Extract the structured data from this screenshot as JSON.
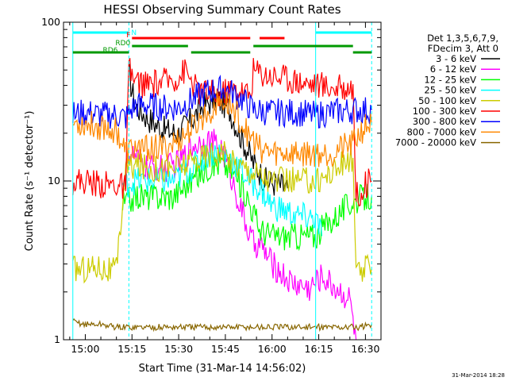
{
  "chart_data": {
    "type": "line",
    "title": "HESSI Observing Summary Count Rates",
    "xlabel": "Start Time (31-Mar-14 14:56:02)",
    "ylabel": "Count Rate (s⁻¹ detector⁻¹)",
    "x_unit": "minutes of 31-Mar-2014 (UT)",
    "xlim": [
      "14:53",
      "16:35"
    ],
    "ylim": [
      1,
      100
    ],
    "y_scale": "log",
    "x_ticks": [
      "15:00",
      "15:15",
      "15:30",
      "15:45",
      "16:00",
      "16:15",
      "16:30"
    ],
    "y_ticks": [
      "1",
      "10",
      "100"
    ],
    "timestamp": "31-Mar-2014 18:28",
    "legend": {
      "placement": "right",
      "header": [
        "Det 1,3,5,6,7,9,",
        "FDecim 3, Att 0"
      ]
    },
    "vertical_markers": [
      {
        "time": "14:56",
        "style": "solid",
        "color": "#00ffff"
      },
      {
        "time": "15:14",
        "style": "dashed",
        "color": "#00ffff"
      },
      {
        "time": "16:14",
        "style": "solid",
        "color": "#00ffff"
      },
      {
        "time": "16:32",
        "style": "dashed",
        "color": "#00ffff"
      }
    ],
    "flag_bars": [
      {
        "label": "N",
        "color": "#00ffff",
        "row": 1,
        "segments": [
          [
            "14:56",
            "15:14"
          ],
          [
            "16:14",
            "16:32"
          ]
        ]
      },
      {
        "label": "F",
        "color": "#ff0000",
        "row": 2,
        "segments": [
          [
            "15:15",
            "15:53"
          ],
          [
            "15:56",
            "16:04"
          ]
        ]
      },
      {
        "label": "RD0",
        "color": "#009900",
        "row": 3,
        "segments": [
          [
            "15:15",
            "15:33"
          ],
          [
            "15:54",
            "16:26"
          ]
        ]
      },
      {
        "label": "RD6",
        "color": "#009900",
        "row": 4,
        "segments": [
          [
            "14:56",
            "15:14"
          ],
          [
            "15:34",
            "15:53"
          ],
          [
            "16:26",
            "16:32"
          ]
        ]
      }
    ],
    "series": [
      {
        "name": "3 - 6 keV",
        "color": "#000000",
        "points": [
          [
            "15:14",
            47
          ],
          [
            "15:16",
            30
          ],
          [
            "15:20",
            25
          ],
          [
            "15:25",
            21
          ],
          [
            "15:30",
            20
          ],
          [
            "15:34",
            24
          ],
          [
            "15:38",
            30
          ],
          [
            "15:42",
            33
          ],
          [
            "15:46",
            29
          ],
          [
            "15:50",
            19
          ],
          [
            "15:54",
            13
          ],
          [
            "15:58",
            10
          ],
          [
            "16:02",
            9.5
          ],
          [
            "16:05",
            9
          ]
        ]
      },
      {
        "name": "6 - 12 keV",
        "color": "#ff00ff",
        "points": [
          [
            "15:14",
            15
          ],
          [
            "15:20",
            12
          ],
          [
            "15:26",
            12
          ],
          [
            "15:30",
            13
          ],
          [
            "15:35",
            17
          ],
          [
            "15:40",
            18
          ],
          [
            "15:44",
            16
          ],
          [
            "15:48",
            9
          ],
          [
            "15:52",
            5
          ],
          [
            "15:54",
            4
          ],
          [
            "15:56",
            4
          ],
          [
            "16:00",
            3
          ],
          [
            "16:06",
            2.3
          ],
          [
            "16:12",
            2.1
          ],
          [
            "16:16",
            2.5
          ],
          [
            "16:25",
            1.8
          ],
          [
            "16:27",
            1
          ]
        ]
      },
      {
        "name": "12 - 25 keV",
        "color": "#00ff00",
        "points": [
          [
            "15:12",
            7
          ],
          [
            "15:16",
            8
          ],
          [
            "15:22",
            8
          ],
          [
            "15:28",
            8
          ],
          [
            "15:34",
            10
          ],
          [
            "15:40",
            12.5
          ],
          [
            "15:44",
            13
          ],
          [
            "15:48",
            11
          ],
          [
            "15:52",
            8
          ],
          [
            "15:56",
            5
          ],
          [
            "16:00",
            4.5
          ],
          [
            "16:08",
            4.5
          ],
          [
            "16:14",
            4.5
          ],
          [
            "16:16",
            5
          ],
          [
            "16:26",
            7.5
          ],
          [
            "16:32",
            8
          ]
        ]
      },
      {
        "name": "25 - 50 keV",
        "color": "#00ffff",
        "points": [
          [
            "15:12",
            9.5
          ],
          [
            "15:16",
            10
          ],
          [
            "15:22",
            10
          ],
          [
            "15:28",
            10
          ],
          [
            "15:34",
            12
          ],
          [
            "15:40",
            15
          ],
          [
            "15:44",
            15
          ],
          [
            "15:48",
            13
          ],
          [
            "15:52",
            10.5
          ],
          [
            "15:56",
            9
          ],
          [
            "16:00",
            7
          ],
          [
            "16:08",
            6
          ],
          [
            "16:14",
            5.8
          ],
          [
            "16:16",
            4.5
          ]
        ]
      },
      {
        "name": "50 - 100 keV",
        "color": "#cccc00",
        "points": [
          [
            "14:56",
            2.8
          ],
          [
            "15:00",
            2.8
          ],
          [
            "15:04",
            2.9
          ],
          [
            "15:06",
            2.8
          ],
          [
            "15:08",
            2.7
          ],
          [
            "15:10",
            2.7
          ],
          [
            "15:13",
            12
          ],
          [
            "15:16",
            12.5
          ],
          [
            "15:22",
            12
          ],
          [
            "15:28",
            12
          ],
          [
            "15:34",
            13
          ],
          [
            "15:40",
            15
          ],
          [
            "15:44",
            15
          ],
          [
            "15:48",
            13
          ],
          [
            "15:52",
            12
          ],
          [
            "15:56",
            11
          ],
          [
            "16:00",
            10
          ],
          [
            "16:08",
            10
          ],
          [
            "16:14",
            10
          ],
          [
            "16:18",
            11
          ],
          [
            "16:26",
            14
          ],
          [
            "16:27",
            2.5
          ],
          [
            "16:30",
            2.8
          ],
          [
            "16:32",
            2.8
          ]
        ]
      },
      {
        "name": "100 - 300 keV",
        "color": "#ff0000",
        "points": [
          [
            "14:56",
            10
          ],
          [
            "15:00",
            10
          ],
          [
            "15:06",
            9.5
          ],
          [
            "15:10",
            9.5
          ],
          [
            "15:13",
            9
          ],
          [
            "15:14",
            50
          ],
          [
            "15:16",
            42
          ],
          [
            "15:20",
            40
          ],
          [
            "15:25",
            42
          ],
          [
            "15:30",
            45
          ],
          [
            "15:32",
            50
          ],
          [
            "15:36",
            37
          ],
          [
            "15:42",
            35
          ],
          [
            "15:48",
            38
          ],
          [
            "15:53",
            35
          ],
          [
            "15:54",
            50
          ],
          [
            "15:58",
            47
          ],
          [
            "16:04",
            45
          ],
          [
            "16:10",
            42
          ],
          [
            "16:16",
            40
          ],
          [
            "16:22",
            38
          ],
          [
            "16:26",
            40
          ],
          [
            "16:27",
            8
          ],
          [
            "16:30",
            9.5
          ],
          [
            "16:32",
            10
          ]
        ]
      },
      {
        "name": "300 - 800 keV",
        "color": "#0000ff",
        "points": [
          [
            "14:56",
            26
          ],
          [
            "15:00",
            27
          ],
          [
            "15:05",
            26
          ],
          [
            "15:10",
            26
          ],
          [
            "15:13",
            25
          ],
          [
            "15:16",
            30
          ],
          [
            "15:20",
            30
          ],
          [
            "15:25",
            29
          ],
          [
            "15:30",
            29
          ],
          [
            "15:35",
            33
          ],
          [
            "15:40",
            37
          ],
          [
            "15:45",
            38
          ],
          [
            "15:50",
            33
          ],
          [
            "15:54",
            28
          ],
          [
            "16:00",
            27
          ],
          [
            "16:08",
            27
          ],
          [
            "16:14",
            26
          ],
          [
            "16:18",
            27
          ],
          [
            "16:26",
            28
          ],
          [
            "16:30",
            28
          ],
          [
            "16:32",
            28
          ]
        ]
      },
      {
        "name": "800 - 7000 keV",
        "color": "#ff8800",
        "points": [
          [
            "14:56",
            23
          ],
          [
            "15:00",
            23
          ],
          [
            "15:05",
            22
          ],
          [
            "15:10",
            21
          ],
          [
            "15:13",
            15
          ],
          [
            "15:16",
            16
          ],
          [
            "15:20",
            16
          ],
          [
            "15:25",
            16
          ],
          [
            "15:30",
            18
          ],
          [
            "15:35",
            22
          ],
          [
            "15:40",
            28
          ],
          [
            "15:44",
            32
          ],
          [
            "15:48",
            28
          ],
          [
            "15:52",
            20
          ],
          [
            "15:56",
            16
          ],
          [
            "16:00",
            15
          ],
          [
            "16:08",
            15
          ],
          [
            "16:14",
            15
          ],
          [
            "16:18",
            15
          ],
          [
            "16:26",
            17
          ],
          [
            "16:28",
            20
          ],
          [
            "16:30",
            22
          ],
          [
            "16:32",
            23
          ]
        ]
      },
      {
        "name": "7000 - 20000 keV",
        "color": "#886600",
        "points": [
          [
            "14:56",
            1.3
          ],
          [
            "15:00",
            1.25
          ],
          [
            "15:05",
            1.25
          ],
          [
            "15:10",
            1.2
          ],
          [
            "15:14",
            1.2
          ],
          [
            "16:14",
            1.2
          ],
          [
            "16:22",
            1.2
          ],
          [
            "16:28",
            1.2
          ],
          [
            "16:32",
            1.25
          ]
        ]
      }
    ]
  }
}
